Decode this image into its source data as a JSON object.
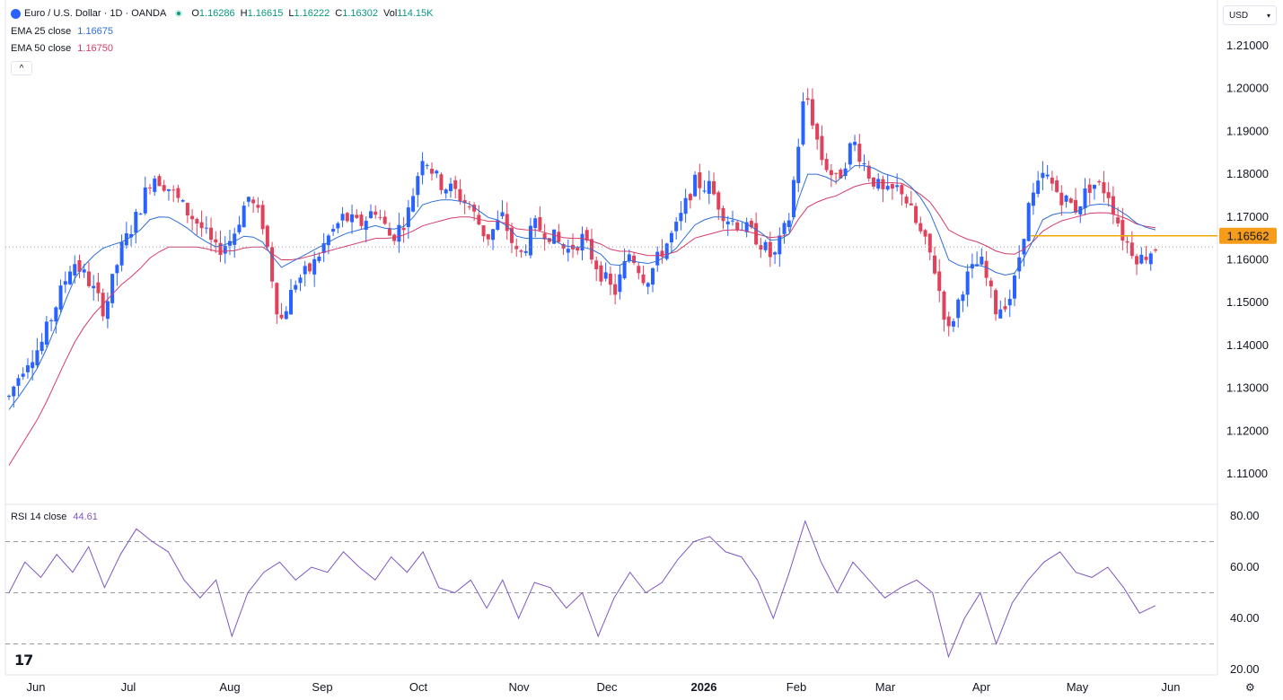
{
  "header": {
    "symbol": "Euro / U.S. Dollar · 1D · OANDA",
    "o_label": "O",
    "o_value": "1.16286",
    "h_label": "H",
    "h_value": "1.16615",
    "l_label": "L",
    "l_value": "1.16222",
    "c_label": "C",
    "c_value": "1.16302",
    "vol_label": "Vol",
    "vol_value": "114.15K",
    "ema25_label": "EMA 25 close",
    "ema25_value": "1.16675",
    "ema50_label": "EMA 50 close",
    "ema50_value": "1.16750",
    "rsi_label": "RSI 14 close",
    "rsi_value": "44.61",
    "collapse_glyph": "^",
    "currency": "USD",
    "logo": "17",
    "settings_glyph": "⚙"
  },
  "colors": {
    "up": "#2962ff",
    "down": "#e0415b",
    "ema25": "#2f6fd8",
    "ema50": "#d43c68",
    "rsi": "#7e57c2",
    "level_line": "#f0a700",
    "level_tag": "#f59c1a"
  },
  "chart_data": [
    {
      "type": "candlestick",
      "title": "Euro / U.S. Dollar · 1D · OANDA",
      "ylim": [
        1.1,
        1.21
      ],
      "y_ticks": [
        "1.21000",
        "1.20000",
        "1.19000",
        "1.18000",
        "1.17000",
        "1.16000",
        "1.15000",
        "1.14000",
        "1.13000",
        "1.12000",
        "1.11000"
      ],
      "x_labels": [
        "Jun",
        "Jul",
        "Aug",
        "Sep",
        "Oct",
        "Nov",
        "Dec",
        "2026",
        "Feb",
        "Mar",
        "Apr",
        "May",
        "Jun"
      ],
      "horizontal_level": {
        "value": 1.16562,
        "label": "1.16562"
      },
      "last_close": 1.16302,
      "close_path": [
        1.128,
        1.136,
        1.14,
        1.15,
        1.16,
        1.155,
        1.148,
        1.162,
        1.17,
        1.18,
        1.177,
        1.172,
        1.168,
        1.162,
        1.165,
        1.175,
        1.168,
        1.145,
        1.155,
        1.158,
        1.165,
        1.17,
        1.168,
        1.172,
        1.165,
        1.17,
        1.185,
        1.178,
        1.176,
        1.172,
        1.165,
        1.17,
        1.16,
        1.168,
        1.166,
        1.162,
        1.165,
        1.158,
        1.152,
        1.162,
        1.155,
        1.162,
        1.168,
        1.178,
        1.177,
        1.17,
        1.168,
        1.165,
        1.16,
        1.17,
        1.2,
        1.184,
        1.178,
        1.188,
        1.18,
        1.175,
        1.177,
        1.168,
        1.16,
        1.143,
        1.155,
        1.16,
        1.148,
        1.152,
        1.172,
        1.18,
        1.175,
        1.172,
        1.178,
        1.176,
        1.165,
        1.16,
        1.163
      ],
      "ema25_path": [
        1.125,
        1.13,
        1.136,
        1.145,
        1.155,
        1.16,
        1.163,
        1.164,
        1.166,
        1.17,
        1.17,
        1.168,
        1.165,
        1.163,
        1.164,
        1.166,
        1.164,
        1.158,
        1.16,
        1.162,
        1.164,
        1.166,
        1.167,
        1.168,
        1.167,
        1.168,
        1.173,
        1.174,
        1.174,
        1.173,
        1.17,
        1.169,
        1.165,
        1.165,
        1.165,
        1.163,
        1.163,
        1.162,
        1.158,
        1.16,
        1.159,
        1.16,
        1.163,
        1.168,
        1.17,
        1.17,
        1.169,
        1.167,
        1.164,
        1.166,
        1.18,
        1.18,
        1.178,
        1.182,
        1.182,
        1.18,
        1.179,
        1.176,
        1.17,
        1.16,
        1.158,
        1.159,
        1.157,
        1.156,
        1.162,
        1.17,
        1.171,
        1.171,
        1.173,
        1.173,
        1.171,
        1.168,
        1.167
      ],
      "ema50_path": [
        1.112,
        1.118,
        1.124,
        1.132,
        1.14,
        1.146,
        1.15,
        1.154,
        1.157,
        1.161,
        1.163,
        1.163,
        1.163,
        1.162,
        1.162,
        1.163,
        1.163,
        1.16,
        1.16,
        1.161,
        1.162,
        1.163,
        1.164,
        1.165,
        1.165,
        1.166,
        1.168,
        1.169,
        1.17,
        1.17,
        1.169,
        1.169,
        1.167,
        1.167,
        1.166,
        1.165,
        1.165,
        1.164,
        1.162,
        1.162,
        1.161,
        1.161,
        1.162,
        1.165,
        1.166,
        1.167,
        1.167,
        1.166,
        1.165,
        1.166,
        1.172,
        1.174,
        1.175,
        1.177,
        1.178,
        1.178,
        1.178,
        1.176,
        1.173,
        1.167,
        1.165,
        1.164,
        1.162,
        1.161,
        1.163,
        1.167,
        1.169,
        1.17,
        1.171,
        1.171,
        1.17,
        1.168,
        1.1675
      ]
    },
    {
      "type": "line",
      "title": "RSI 14 close",
      "ylim": [
        20,
        80
      ],
      "y_ticks": [
        "80.00",
        "60.00",
        "40.00",
        "20.00"
      ],
      "bands": [
        70,
        50,
        30
      ],
      "values": [
        50,
        62,
        56,
        65,
        58,
        68,
        52,
        65,
        75,
        70,
        66,
        55,
        48,
        55,
        33,
        50,
        58,
        62,
        55,
        60,
        58,
        66,
        60,
        55,
        64,
        58,
        66,
        52,
        50,
        55,
        44,
        55,
        40,
        54,
        52,
        44,
        50,
        33,
        48,
        58,
        50,
        54,
        63,
        70,
        72,
        66,
        64,
        55,
        40,
        58,
        78,
        62,
        50,
        62,
        55,
        48,
        52,
        55,
        50,
        25,
        40,
        50,
        30,
        46,
        55,
        62,
        66,
        58,
        56,
        60,
        52,
        42,
        45
      ]
    }
  ]
}
